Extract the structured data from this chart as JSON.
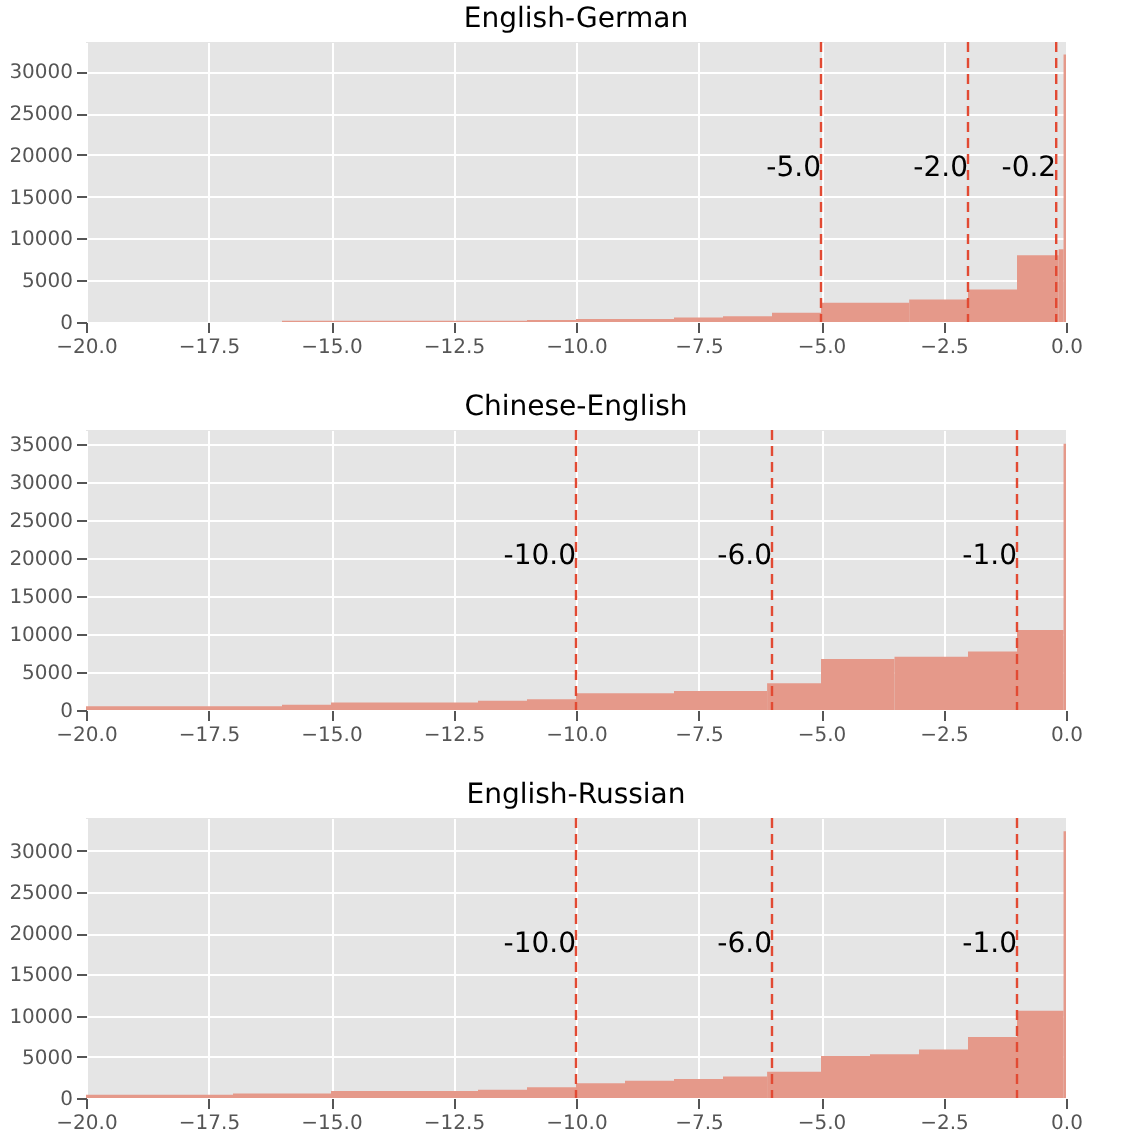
{
  "chart_data": [
    {
      "type": "histogram",
      "title": "English-German",
      "bins": [
        -16,
        -11,
        -10,
        -8,
        -7,
        -6,
        -5,
        -3.2,
        -2,
        -1,
        -0.15,
        -0.05,
        0
      ],
      "values": [
        150,
        250,
        350,
        550,
        700,
        1100,
        2300,
        2700,
        3900,
        8000,
        8700,
        32000
      ],
      "color": "#e5998a",
      "xlim": [
        -20,
        0
      ],
      "xticks": [
        {
          "value": -20,
          "label": "−20.0"
        },
        {
          "value": -17.5,
          "label": "−17.5"
        },
        {
          "value": -15,
          "label": "−15.0"
        },
        {
          "value": -12.5,
          "label": "−12.5"
        },
        {
          "value": -10,
          "label": "−10.0"
        },
        {
          "value": -7.5,
          "label": "−7.5"
        },
        {
          "value": -5,
          "label": "−5.0"
        },
        {
          "value": -2.5,
          "label": "−2.5"
        },
        {
          "value": 0,
          "label": "0.0"
        }
      ],
      "ylim": [
        0,
        33500
      ],
      "yticks": [
        0,
        5000,
        10000,
        15000,
        20000,
        25000,
        30000
      ],
      "grid": true,
      "ref_lines": [
        {
          "axis": "x",
          "value": -5,
          "label": "-5.0",
          "color": "#e24a33",
          "line_style": "dashed"
        },
        {
          "axis": "x",
          "value": -2,
          "label": "-2.0",
          "color": "#e24a33",
          "line_style": "dashed"
        },
        {
          "axis": "x",
          "value": -0.2,
          "label": "-0.2",
          "color": "#e24a33",
          "line_style": "dashed"
        }
      ]
    },
    {
      "type": "histogram",
      "title": "Chinese-English",
      "bins": [
        -20,
        -16,
        -15,
        -12,
        -11,
        -10,
        -8,
        -6.1,
        -5,
        -3.5,
        -2,
        -1,
        -0.05,
        0
      ],
      "values": [
        500,
        700,
        1000,
        1200,
        1400,
        2200,
        2500,
        3500,
        6700,
        7000,
        7700,
        10500,
        35000
      ],
      "color": "#e5998a",
      "xlim": [
        -20,
        0
      ],
      "xticks": [
        {
          "value": -20,
          "label": "−20.0"
        },
        {
          "value": -17.5,
          "label": "−17.5"
        },
        {
          "value": -15,
          "label": "−15.0"
        },
        {
          "value": -12.5,
          "label": "−12.5"
        },
        {
          "value": -10,
          "label": "−10.0"
        },
        {
          "value": -7.5,
          "label": "−7.5"
        },
        {
          "value": -5,
          "label": "−5.0"
        },
        {
          "value": -2.5,
          "label": "−2.5"
        },
        {
          "value": 0,
          "label": "0.0"
        }
      ],
      "ylim": [
        0,
        36800
      ],
      "yticks": [
        0,
        5000,
        10000,
        15000,
        20000,
        25000,
        30000,
        35000
      ],
      "grid": true,
      "ref_lines": [
        {
          "axis": "x",
          "value": -10,
          "label": "-10.0",
          "color": "#e24a33",
          "line_style": "dashed"
        },
        {
          "axis": "x",
          "value": -6,
          "label": "-6.0",
          "color": "#e24a33",
          "line_style": "dashed"
        },
        {
          "axis": "x",
          "value": -1,
          "label": "-1.0",
          "color": "#e24a33",
          "line_style": "dashed"
        }
      ]
    },
    {
      "type": "histogram",
      "title": "English-Russian",
      "bins": [
        -20,
        -17,
        -15,
        -12,
        -11,
        -10,
        -9,
        -8,
        -7,
        -6.1,
        -5,
        -4,
        -3,
        -2,
        -1,
        -0.05,
        0
      ],
      "values": [
        400,
        550,
        850,
        1000,
        1300,
        1800,
        2100,
        2300,
        2600,
        3200,
        5100,
        5300,
        5900,
        7400,
        10600,
        32400
      ],
      "color": "#e5998a",
      "xlim": [
        -20,
        0
      ],
      "xticks": [
        {
          "value": -20,
          "label": "−20.0"
        },
        {
          "value": -17.5,
          "label": "−17.5"
        },
        {
          "value": -15,
          "label": "−15.0"
        },
        {
          "value": -12.5,
          "label": "−12.5"
        },
        {
          "value": -10,
          "label": "−10.0"
        },
        {
          "value": -7.5,
          "label": "−7.5"
        },
        {
          "value": -5,
          "label": "−5.0"
        },
        {
          "value": -2.5,
          "label": "−2.5"
        },
        {
          "value": 0,
          "label": "0.0"
        }
      ],
      "ylim": [
        0,
        34000
      ],
      "yticks": [
        0,
        5000,
        10000,
        15000,
        20000,
        25000,
        30000
      ],
      "grid": true,
      "ref_lines": [
        {
          "axis": "x",
          "value": -10,
          "label": "-10.0",
          "color": "#e24a33",
          "line_style": "dashed"
        },
        {
          "axis": "x",
          "value": -6,
          "label": "-6.0",
          "color": "#e24a33",
          "line_style": "dashed"
        },
        {
          "axis": "x",
          "value": -1,
          "label": "-1.0",
          "color": "#e24a33",
          "line_style": "dashed"
        }
      ]
    }
  ]
}
